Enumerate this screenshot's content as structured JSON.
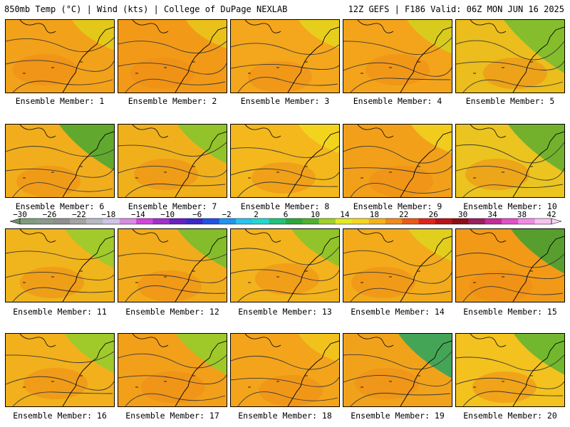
{
  "header": {
    "left": "850mb Temp (°C) | Wind (kts) | College of DuPage NEXLAB",
    "right": "12Z GEFS | F186 Valid: 06Z MON JUN 16 2025"
  },
  "panel_label_prefix": "Ensemble Member:",
  "members": [
    {
      "label": "Ensemble Member: 1",
      "base_color": "#f2a11a",
      "ne_color": "#e3ca19",
      "green": 0.05
    },
    {
      "label": "Ensemble Member: 2",
      "base_color": "#f29a18",
      "ne_color": "#e9c21a",
      "green": 0.0
    },
    {
      "label": "Ensemble Member: 3",
      "base_color": "#f4a61c",
      "ne_color": "#e7d01c",
      "green": 0.0
    },
    {
      "label": "Ensemble Member: 4",
      "base_color": "#f3a41b",
      "ne_color": "#d7cd1e",
      "green": 0.15
    },
    {
      "label": "Ensemble Member: 5",
      "base_color": "#ebbd1d",
      "ne_color": "#7fbd2d",
      "green": 0.7
    },
    {
      "label": "Ensemble Member: 6",
      "base_color": "#f1ad1c",
      "ne_color": "#59a82f",
      "green": 0.5
    },
    {
      "label": "Ensemble Member: 7",
      "base_color": "#f0b01c",
      "ne_color": "#8cc42b",
      "green": 0.3
    },
    {
      "label": "Ensemble Member: 8",
      "base_color": "#f4b81d",
      "ne_color": "#f2d51e",
      "green": 0.0
    },
    {
      "label": "Ensemble Member: 9",
      "base_color": "#f2a01a",
      "ne_color": "#f0cd1d",
      "green": 0.0
    },
    {
      "label": "Ensemble Member: 10",
      "base_color": "#ebc41f",
      "ne_color": "#6db02e",
      "green": 0.55
    },
    {
      "label": "Ensemble Member: 11",
      "base_color": "#f0b41c",
      "ne_color": "#9ccb2b",
      "green": 0.3
    },
    {
      "label": "Ensemble Member: 12",
      "base_color": "#f2ab1b",
      "ne_color": "#7dbd2d",
      "green": 0.3
    },
    {
      "label": "Ensemble Member: 13",
      "base_color": "#f3b31c",
      "ne_color": "#8cc42b",
      "green": 0.25
    },
    {
      "label": "Ensemble Member: 14",
      "base_color": "#f3ab1b",
      "ne_color": "#e0d01e",
      "green": 0.1
    },
    {
      "label": "Ensemble Member: 15",
      "base_color": "#f29a18",
      "ne_color": "#4f9e30",
      "green": 0.45
    },
    {
      "label": "Ensemble Member: 16",
      "base_color": "#f2b01c",
      "ne_color": "#9acb2a",
      "green": 0.3
    },
    {
      "label": "Ensemble Member: 17",
      "base_color": "#f29f1a",
      "ne_color": "#9acb2a",
      "green": 0.35
    },
    {
      "label": "Ensemble Member: 18",
      "base_color": "#f3a41b",
      "ne_color": "#f0c41c",
      "green": 0.0
    },
    {
      "label": "Ensemble Member: 19",
      "base_color": "#f1a21b",
      "ne_color": "#3aa55a",
      "green": 0.45
    },
    {
      "label": "Ensemble Member: 20",
      "base_color": "#f3c21e",
      "ne_color": "#6ab62e",
      "green": 0.35
    }
  ],
  "color_scale": {
    "labels": [
      "−30",
      "−26",
      "−22",
      "−18",
      "−14",
      "−10",
      "−6",
      "−2",
      "2",
      "6",
      "10",
      "14",
      "18",
      "22",
      "26",
      "30",
      "34",
      "38",
      "42"
    ],
    "colors": [
      "#7e9d7c",
      "#8b9a8c",
      "#8f8f8f",
      "#a4a4a4",
      "#b9b9c2",
      "#cfc4e6",
      "#d98be3",
      "#d145db",
      "#a22fcb",
      "#6a1ec1",
      "#3a29c9",
      "#1f52e4",
      "#1e95ee",
      "#27c4ef",
      "#23d8cf",
      "#1fc37c",
      "#2aa93b",
      "#4db22d",
      "#9fd226",
      "#e3eb22",
      "#f6d61d",
      "#f6b21b",
      "#f08a18",
      "#ea5a16",
      "#e0241b",
      "#b81418",
      "#8e0e14",
      "#9a1f5e",
      "#c52c9a",
      "#e24fc9",
      "#f18be4",
      "#f6c3f0"
    ]
  }
}
